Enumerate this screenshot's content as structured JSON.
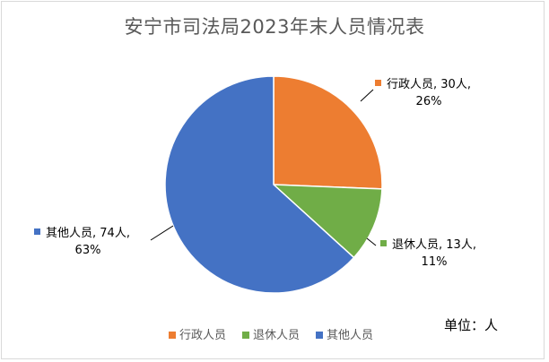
{
  "chart_data": {
    "type": "pie",
    "title": "安宁市司法局2023年末人员情况表",
    "unit_note": "单位：人",
    "slices": [
      {
        "name": "行政人员",
        "value": 30,
        "percent": "26%",
        "color": "#ED7D31",
        "label_line1": "行政人员, 30人,",
        "label_line2": "26%"
      },
      {
        "name": "退休人员",
        "value": 13,
        "percent": "11%",
        "color": "#70AD47",
        "label_line1": "退休人员, 13人,",
        "label_line2": "11%"
      },
      {
        "name": "其他人员",
        "value": 74,
        "percent": "63%",
        "color": "#4472C4",
        "label_line1": "其他人员, 74人,",
        "label_line2": "63%"
      }
    ],
    "legend": [
      "行政人员",
      "退休人员",
      "其他人员"
    ],
    "legend_position": "bottom"
  }
}
